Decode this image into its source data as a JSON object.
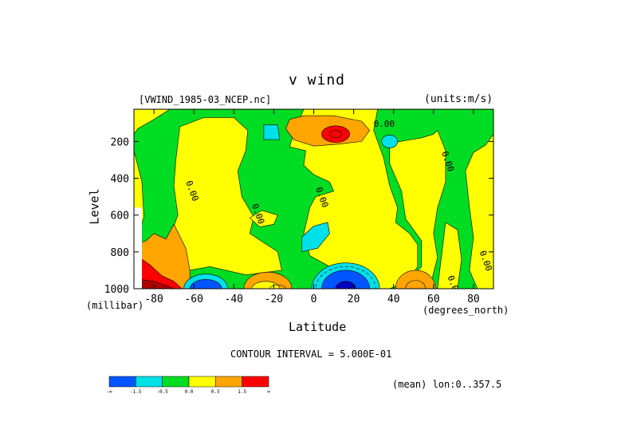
{
  "chart_data": {
    "type": "heatmap",
    "title": "v wind",
    "source_file": "[VWIND_1985-03_NCEP.nc]",
    "units": "(units:m/s)",
    "xlabel": "Latitude",
    "x_units": "(degrees_north)",
    "ylabel": "Level",
    "y_units": "(millibar)",
    "xlim": [
      -90,
      90
    ],
    "ylim": [
      1000,
      25
    ],
    "x_ticks": [
      -80,
      -60,
      -40,
      -20,
      0,
      20,
      40,
      60,
      80
    ],
    "y_ticks": [
      200,
      400,
      600,
      800,
      1000
    ],
    "contour_interval_text": "CONTOUR INTERVAL = 5.000E-01",
    "footer_text": "(mean) lon:0..357.5",
    "contour_labels": [
      {
        "text": "0.00",
        "lat": -78,
        "lev": 25
      },
      {
        "text": "0.00",
        "lat": 30,
        "lev": 120
      },
      {
        "text": "0.00",
        "lat": -64,
        "lev": 420
      },
      {
        "text": "0.00",
        "lat": -31,
        "lev": 545
      },
      {
        "text": "0.00",
        "lat": 1,
        "lev": 455
      },
      {
        "text": "0.00",
        "lat": 64,
        "lev": 260
      },
      {
        "text": "0.00",
        "lat": 83,
        "lev": 800
      },
      {
        "text": "0.00",
        "lat": 67,
        "lev": 935
      }
    ],
    "levels_color": [
      {
        "color": "#0055ff",
        "label": "-∞"
      },
      {
        "color": "#00e0e8",
        "label": "-1.5"
      },
      {
        "color": "#00dd22",
        "label": "-0.5"
      },
      {
        "color": "#ffff00",
        "label": "0.0"
      },
      {
        "color": "#ffa500",
        "label": "0.5"
      },
      {
        "color": "#ff0000",
        "label": "1.5"
      }
    ],
    "colorbar_end_label": "∞",
    "palette": {
      "dark_blue": "#0000c0",
      "blue": "#0055ff",
      "cyan": "#00e0e8",
      "green": "#00dd22",
      "yellow": "#ffff00",
      "orange": "#ffa500",
      "red": "#ff0000",
      "dark_red": "#b00000"
    }
  }
}
